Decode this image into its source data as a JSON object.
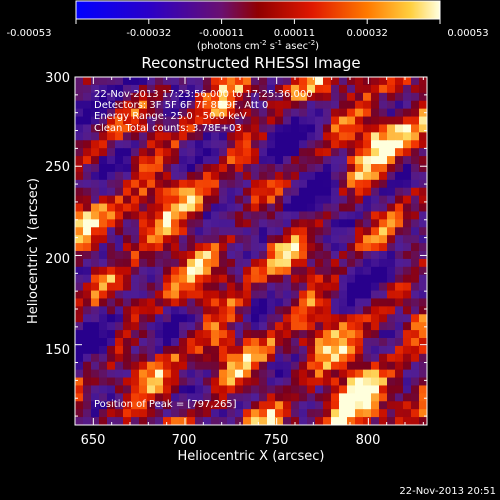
{
  "colorbar": {
    "tick_labels": [
      "-0.00053",
      "-0.00032",
      "-0.00011",
      "0.00011",
      "0.00032",
      "0.00053"
    ],
    "units_text": "(photons cm",
    "units_exp1": "-2",
    "units_mid": " s",
    "units_exp2": "-1",
    "units_end": " asec",
    "units_exp3": "-2",
    "units_close": ")"
  },
  "plot": {
    "title": "Reconstructed RHESSI Image",
    "xlabel": "Heliocentric X (arcsec)",
    "ylabel": "Heliocentric Y (arcsec)",
    "xticks": [
      "650",
      "700",
      "750",
      "800"
    ],
    "yticks": [
      "150",
      "200",
      "250",
      "300"
    ],
    "xrange": [
      640,
      832
    ],
    "yrange": [
      105,
      300
    ],
    "info_lines": [
      "22-Nov-2013 17:23:56.000 to 17:25:36.000",
      "Detectors: 3F 5F 6F 7F 8F 9F, Att 0",
      "Energy Range: 25.0 - 50.0 keV",
      "Clean    Total counts: 3.78E+03"
    ],
    "peak_text": "Position of Peak = [797,265]"
  },
  "footer": {
    "timestamp": "22-Nov-2013 20:51"
  },
  "colors": {
    "background": "#000000",
    "text": "#ffffff"
  }
}
